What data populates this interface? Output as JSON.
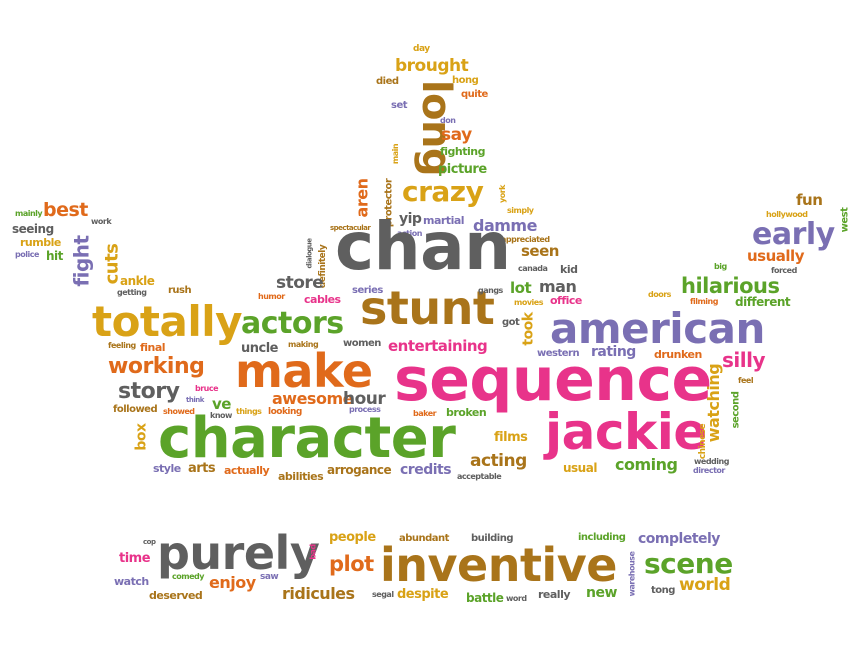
{
  "colors": {
    "orange": "#e06a1b",
    "gold": "#d9a216",
    "green": "#5ba329",
    "purple": "#7a6fb3",
    "pink": "#e8338a",
    "gray": "#5f5f5f",
    "brown": "#a9741a",
    "darkgold": "#b8860b"
  },
  "words": {
    "day": "day",
    "brought": "brought",
    "died": "died",
    "hong": "hong",
    "quite": "quite",
    "set": "set",
    "don": "don",
    "long": "long",
    "say": "say",
    "fighting": "fighting",
    "picture": "picture",
    "main": "main",
    "crazy": "crazy",
    "aren": "aren",
    "protector": "protector",
    "york": "york",
    "simply": "simply",
    "yip": "yip",
    "martial": "martial",
    "damme": "damme",
    "appreciated": "appreciated",
    "spectacular": "spectacular",
    "action": "action",
    "fun": "fun",
    "hollywood": "hollywood",
    "west": "west",
    "early": "early",
    "usually": "usually",
    "big": "big",
    "forced": "forced",
    "mainly": "mainly",
    "best": "best",
    "work": "work",
    "seeing": "seeing",
    "rumble": "rumble",
    "police": "police",
    "hit": "hit",
    "fight": "fight",
    "cuts": "cuts",
    "ankle": "ankle",
    "getting": "getting",
    "rush": "rush",
    "dialogue": "dialogue",
    "definitely": "definitely",
    "chan": "chan",
    "seen": "seen",
    "canada": "canada",
    "kid": "kid",
    "hilarious": "hilarious",
    "doors": "doors",
    "filming": "filming",
    "different": "different",
    "store": "store",
    "humor": "humor",
    "cables": "cables",
    "series": "series",
    "gangs": "gangs",
    "lot": "lot",
    "man": "man",
    "movies": "movies",
    "office": "office",
    "totally": "totally",
    "actors": "actors",
    "stunt": "stunt",
    "american": "american",
    "feeling": "feeling",
    "final": "final",
    "uncle": "uncle",
    "making": "making",
    "women": "women",
    "entertaining": "entertaining",
    "got": "got",
    "took": "took",
    "western": "western",
    "rating": "rating",
    "drunken": "drunken",
    "silly": "silly",
    "working": "working",
    "make": "make",
    "sequence": "sequence",
    "watching": "watching",
    "feel": "feel",
    "story": "story",
    "bruce": "bruce",
    "think": "think",
    "know": "know",
    "awesome": "awesome",
    "hour": "hour",
    "process": "process",
    "baker": "baker",
    "broken": "broken",
    "second": "second",
    "followed": "followed",
    "showed": "showed",
    "ve": "ve",
    "things": "things",
    "looking": "looking",
    "box": "box",
    "character": "character",
    "jackie": "jackie",
    "chinese": "chinese",
    "wedding": "wedding",
    "director": "director",
    "films": "films",
    "style": "style",
    "arts": "arts",
    "actually": "actually",
    "abilities": "abilities",
    "arrogance": "arrogance",
    "credits": "credits",
    "acting": "acting",
    "acceptable": "acceptable",
    "usual": "usual",
    "coming": "coming",
    "cop": "cop",
    "people": "people",
    "abundant": "abundant",
    "building": "building",
    "including": "including",
    "completely": "completely",
    "time": "time",
    "purely": "purely",
    "bad": "bad",
    "plot": "plot",
    "inventive": "inventive",
    "warehouse": "warehouse",
    "scene": "scene",
    "comedy": "comedy",
    "watch": "watch",
    "enjoy": "enjoy",
    "saw": "saw",
    "tong": "tong",
    "world": "world",
    "deserved": "deserved",
    "ridicules": "ridicules",
    "segal": "segal",
    "despite": "despite",
    "battle": "battle",
    "word": "word",
    "really": "really",
    "new": "new"
  }
}
